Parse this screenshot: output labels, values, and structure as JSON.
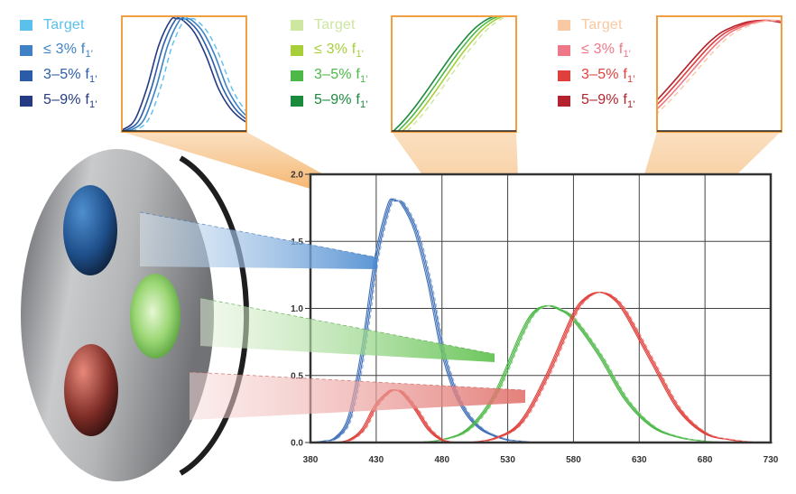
{
  "legends": [
    {
      "group": "blue",
      "entries": [
        {
          "label": "Target",
          "color": "#5bc0eb"
        },
        {
          "label": "≤ 3% f",
          "sub": "1'",
          "color": "#3f82c4"
        },
        {
          "label": "3–5% f",
          "sub": "1'",
          "color": "#2a5ca8"
        },
        {
          "label": "5–9% f",
          "sub": "1'",
          "color": "#243a82"
        }
      ]
    },
    {
      "group": "green",
      "entries": [
        {
          "label": "Target",
          "color": "#cde6a0"
        },
        {
          "label": "≤ 3% f",
          "sub": "1'",
          "color": "#a6cf3a"
        },
        {
          "label": "3–5% f",
          "sub": "1'",
          "color": "#4db847"
        },
        {
          "label": "5–9% f",
          "sub": "1'",
          "color": "#1a8a3c"
        }
      ]
    },
    {
      "group": "red",
      "entries": [
        {
          "label": "Target",
          "color": "#f8c9a2"
        },
        {
          "label": "≤ 3% f",
          "sub": "1'",
          "color": "#ee7788"
        },
        {
          "label": "3–5% f",
          "sub": "1'",
          "color": "#e0403c"
        },
        {
          "label": "5–9% f",
          "sub": "1'",
          "color": "#b3222e"
        }
      ]
    }
  ],
  "chart_data": {
    "type": "line",
    "title": "",
    "xlabel": "",
    "ylabel": "",
    "xlim": [
      380,
      730
    ],
    "ylim": [
      0,
      2.0
    ],
    "x_ticks": [
      "380",
      "430",
      "480",
      "530",
      "580",
      "630",
      "680",
      "730"
    ],
    "y_ticks": [
      "0.0",
      "0.5",
      "1.0",
      "1.5",
      "2.0"
    ],
    "grid": true,
    "series": [
      {
        "color": "#3f6fb8",
        "x": [
          380,
          390,
          400,
          410,
          420,
          430,
          440,
          445,
          450,
          460,
          470,
          480,
          490,
          500,
          510,
          520,
          530,
          540,
          550,
          560
        ],
        "y": [
          0,
          0.01,
          0.04,
          0.2,
          0.7,
          1.38,
          1.78,
          1.8,
          1.78,
          1.58,
          1.2,
          0.7,
          0.38,
          0.2,
          0.1,
          0.05,
          0.02,
          0.01,
          0,
          0
        ]
      },
      {
        "color": "#4db847",
        "x": [
          460,
          480,
          500,
          520,
          540,
          550,
          560,
          570,
          580,
          600,
          620,
          640,
          660,
          680,
          700,
          720,
          730
        ],
        "y": [
          0,
          0.02,
          0.1,
          0.35,
          0.8,
          0.97,
          1.02,
          0.99,
          0.92,
          0.65,
          0.32,
          0.12,
          0.04,
          0.01,
          0,
          0,
          0
        ]
      },
      {
        "color": "#e0403c",
        "x": [
          500,
          520,
          540,
          560,
          580,
          590,
          600,
          610,
          620,
          640,
          660,
          680,
          700,
          720,
          730
        ],
        "y": [
          0,
          0.03,
          0.15,
          0.5,
          0.95,
          1.08,
          1.12,
          1.08,
          0.96,
          0.6,
          0.25,
          0.07,
          0.02,
          0,
          0
        ]
      },
      {
        "color": "#e0403c",
        "x": [
          400,
          410,
          420,
          430,
          440,
          445,
          450,
          460,
          470,
          480,
          490
        ],
        "y": [
          0,
          0.02,
          0.1,
          0.28,
          0.38,
          0.39,
          0.37,
          0.25,
          0.1,
          0.02,
          0
        ]
      }
    ],
    "insets": [
      {
        "group": "blue",
        "x": [
          395,
          500
        ],
        "y": [
          0,
          1.84
        ]
      },
      {
        "group": "green",
        "x": [
          515,
          560
        ],
        "y": [
          0.3,
          1.0
        ]
      },
      {
        "group": "red",
        "x": [
          560,
          605
        ],
        "y": [
          0.3,
          1.15
        ]
      }
    ]
  }
}
